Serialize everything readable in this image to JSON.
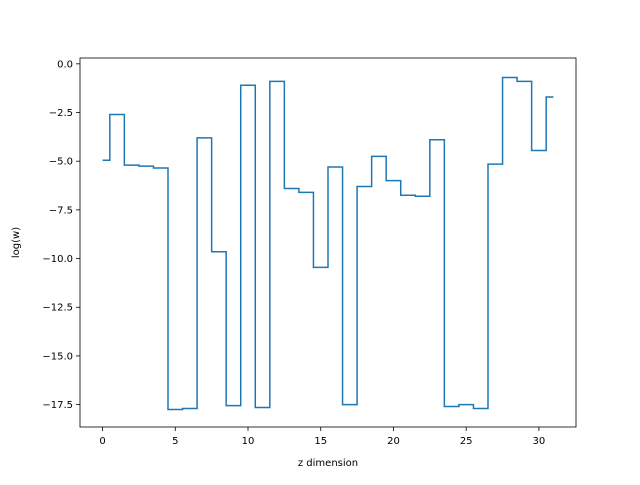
{
  "chart_data": {
    "type": "line",
    "drawstyle": "steps-mid",
    "title": "",
    "xlabel": "z dimension",
    "ylabel": "log(w)",
    "xlim": [
      -1.55,
      32.55
    ],
    "ylim": [
      -18.65,
      0.3
    ],
    "xticks": [
      0,
      5,
      10,
      15,
      20,
      25,
      30
    ],
    "xtick_labels": [
      "0",
      "5",
      "10",
      "15",
      "20",
      "25",
      "30"
    ],
    "yticks": [
      0.0,
      -2.5,
      -5.0,
      -7.5,
      -10.0,
      -12.5,
      -15.0,
      -17.5
    ],
    "ytick_labels": [
      "0.0",
      "−2.5",
      "−5.0",
      "−7.5",
      "−10.0",
      "−12.5",
      "−15.0",
      "−17.5"
    ],
    "grid": false,
    "series": [
      {
        "color": "#1f77b4",
        "x": [
          0,
          1,
          2,
          3,
          4,
          5,
          6,
          7,
          8,
          9,
          10,
          11,
          12,
          13,
          14,
          15,
          16,
          17,
          18,
          19,
          20,
          21,
          22,
          23,
          24,
          25,
          26,
          27,
          28,
          29,
          30,
          31
        ],
        "y": [
          -4.95,
          -2.6,
          -5.2,
          -5.25,
          -5.35,
          -17.75,
          -17.7,
          -3.8,
          -9.65,
          -17.55,
          -1.1,
          -17.65,
          -0.9,
          -6.4,
          -6.6,
          -10.45,
          -5.3,
          -17.5,
          -6.3,
          -4.75,
          -6.0,
          -6.75,
          -6.8,
          -3.9,
          -17.6,
          -17.5,
          -17.7,
          -5.15,
          -0.7,
          -0.9,
          -4.45,
          -1.7
        ]
      }
    ]
  }
}
